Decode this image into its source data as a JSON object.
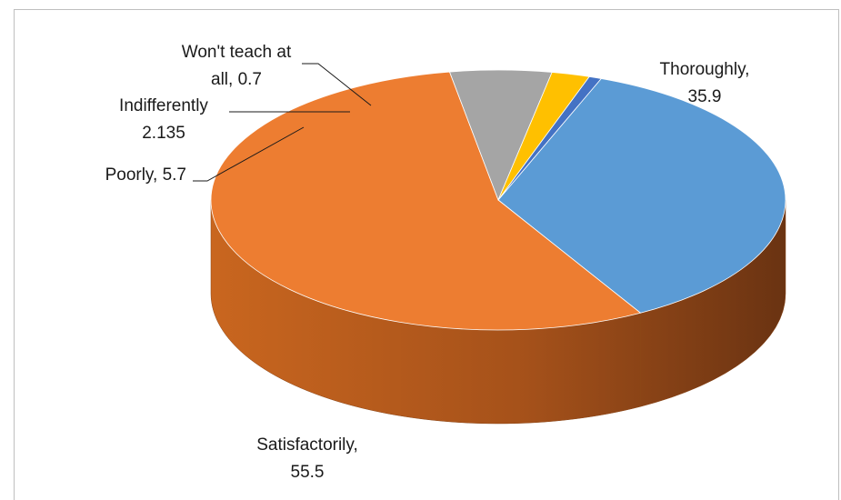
{
  "chart_data": {
    "type": "pie",
    "style": "3d",
    "title": "",
    "slices": [
      {
        "label": "Thoroughly",
        "value": 35.9,
        "color": "#5b9bd5"
      },
      {
        "label": "Satisfactorily",
        "value": 55.5,
        "color": "#ed7d31"
      },
      {
        "label": "Poorly",
        "value": 5.7,
        "color": "#a5a5a5"
      },
      {
        "label": "Indifferently",
        "value": 2.135,
        "color": "#ffc000"
      },
      {
        "label": "Won't teach at all",
        "value": 0.7,
        "color": "#4472c4"
      }
    ],
    "data_labels": [
      {
        "lines": [
          "Thoroughly,",
          "35.9"
        ]
      },
      {
        "lines": [
          "Satisfactorily,",
          "55.5"
        ]
      },
      {
        "lines": [
          "Poorly, 5.7"
        ]
      },
      {
        "lines": [
          "Indifferently",
          "2.135"
        ]
      },
      {
        "lines": [
          "Won't teach at",
          "all, 0.7"
        ]
      }
    ]
  }
}
